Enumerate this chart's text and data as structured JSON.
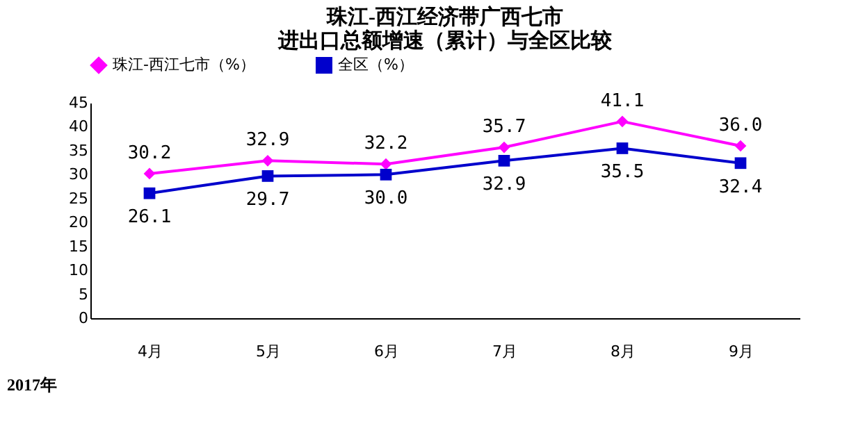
{
  "chart_data": {
    "type": "line",
    "title": [
      "珠江-西江经济带广西七市",
      "进出口总额增速（累计）与全区比较"
    ],
    "categories": [
      "4月",
      "5月",
      "6月",
      "7月",
      "8月",
      "9月"
    ],
    "series": [
      {
        "name": "珠江-西江七市（%）",
        "color": "#ff00ff",
        "marker": "diamond",
        "values": [
          30.2,
          32.9,
          32.2,
          35.7,
          41.1,
          36.0
        ],
        "value_labels": [
          "30.2",
          "32.9",
          "32.2",
          "35.7",
          "41.1",
          "36.0"
        ]
      },
      {
        "name": "全区（%）",
        "color": "#0000cc",
        "marker": "square",
        "values": [
          26.1,
          29.7,
          30.0,
          32.9,
          35.5,
          32.4
        ],
        "value_labels": [
          "26.1",
          "29.7",
          "30.0",
          "32.9",
          "35.5",
          "32.4"
        ]
      }
    ],
    "ylim": [
      0,
      45
    ],
    "yticks": [
      0,
      5,
      10,
      15,
      20,
      25,
      30,
      35,
      40,
      45
    ],
    "grid": false,
    "legend": "top",
    "data_labels": true,
    "line_style": "solid",
    "annotations": [
      "2017年"
    ]
  }
}
